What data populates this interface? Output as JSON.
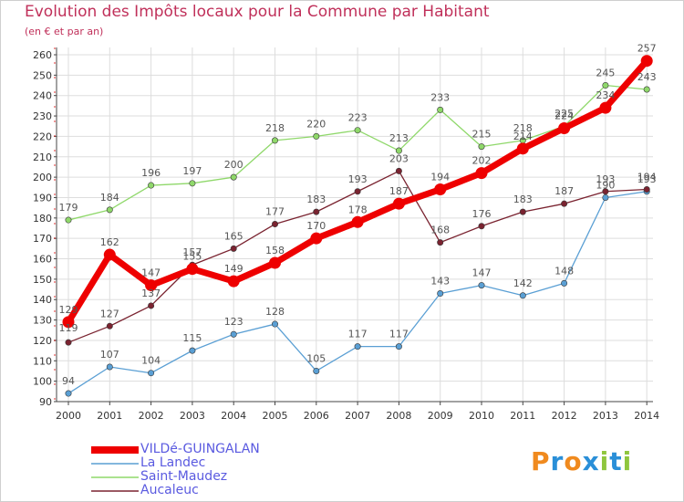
{
  "chart_data": {
    "type": "line",
    "title": "Evolution des Impôts locaux pour la Commune par Habitant",
    "subtitle": "(en € et par an)",
    "categories": [
      "2000",
      "2001",
      "2002",
      "2003",
      "2004",
      "2005",
      "2006",
      "2007",
      "2008",
      "2009",
      "2010",
      "2011",
      "2012",
      "2013",
      "2014"
    ],
    "ylim": [
      90,
      260
    ],
    "yticks": [
      90,
      100,
      110,
      120,
      130,
      140,
      150,
      160,
      170,
      180,
      190,
      200,
      210,
      220,
      230,
      240,
      250,
      260
    ],
    "series": [
      {
        "name": "VILDé-GUINGALAN",
        "color": "#ee0000",
        "values": [
          129,
          162,
          147,
          155,
          149,
          158,
          170,
          178,
          187,
          194,
          202,
          214,
          224,
          234,
          257
        ]
      },
      {
        "name": "La Landec",
        "color": "#5a9fd4",
        "values": [
          94,
          107,
          104,
          115,
          123,
          128,
          105,
          117,
          117,
          143,
          147,
          142,
          148,
          190,
          193
        ]
      },
      {
        "name": "Saint-Maudez",
        "color": "#8fd86a",
        "values": [
          179,
          184,
          196,
          197,
          200,
          218,
          220,
          223,
          213,
          233,
          215,
          218,
          225,
          245,
          243
        ]
      },
      {
        "name": "Aucaleuc",
        "color": "#7a2330",
        "values": [
          119,
          127,
          137,
          157,
          165,
          177,
          183,
          193,
          203,
          168,
          176,
          183,
          187,
          193,
          194
        ]
      }
    ],
    "logo_text": "Proxiti"
  }
}
